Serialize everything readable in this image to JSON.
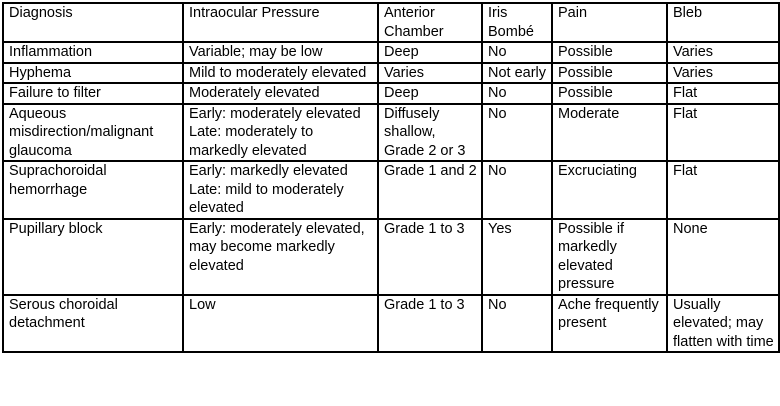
{
  "headers": [
    "Diagnosis",
    "Intraocular Pressure",
    "Anterior Chamber",
    "Iris Bombé",
    "Pain",
    "Bleb"
  ],
  "rows": [
    [
      "Inflammation",
      "Variable; may be low",
      "Deep",
      "No",
      "Possible",
      "Varies"
    ],
    [
      "Hyphema",
      "Mild to moderately elevated",
      "Varies",
      "Not early",
      "Possible",
      "Varies"
    ],
    [
      "Failure to filter",
      "Moderately elevated",
      "Deep",
      "No",
      "Possible",
      "Flat"
    ],
    [
      "Aqueous misdirection/malignant glaucoma",
      "Early: moderately elevated\nLate: moderately to markedly elevated",
      "Diffusely shallow, Grade 2 or 3",
      "No",
      "Moderate",
      "Flat"
    ],
    [
      "Suprachoroidal hemorrhage",
      "Early: markedly elevated\nLate: mild to moderately elevated",
      "Grade 1 and 2",
      "No",
      "Excruciating",
      "Flat"
    ],
    [
      "Pupillary block",
      "Early: moderately elevated, may become markedly elevated",
      "Grade 1 to 3",
      "Yes",
      "Possible if markedly elevated pressure",
      "None"
    ],
    [
      "Serous choroidal detachment",
      "Low",
      "Grade 1 to 3",
      "No",
      "Ache frequently present",
      "Usually elevated; may flatten with time"
    ]
  ]
}
